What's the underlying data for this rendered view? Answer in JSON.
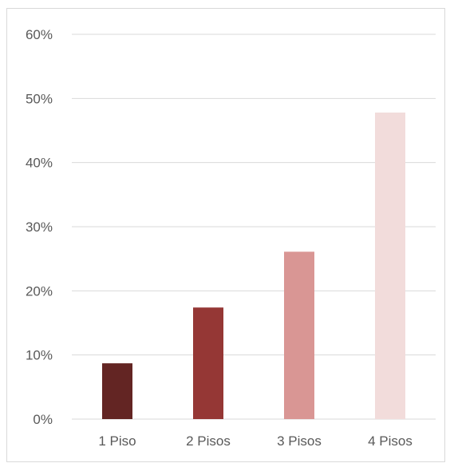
{
  "chart_data": {
    "type": "bar",
    "categories": [
      "1 Piso",
      "2 Pisos",
      "3 Pisos",
      "4 Pisos"
    ],
    "values": [
      8.7,
      17.4,
      26.1,
      47.8
    ],
    "colors": [
      "#632523",
      "#953735",
      "#D99694",
      "#F2DCDB"
    ],
    "ylim": [
      0,
      60
    ],
    "yticks": [
      0,
      10,
      20,
      30,
      40,
      50,
      60
    ],
    "ytick_labels": [
      "0%",
      "10%",
      "20%",
      "30%",
      "40%",
      "50%",
      "60%"
    ],
    "grid": true,
    "legend": "none"
  }
}
